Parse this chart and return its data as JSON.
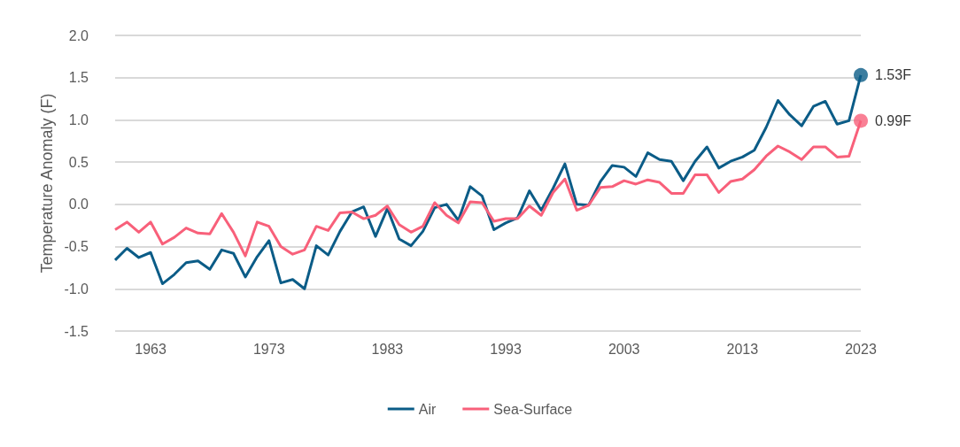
{
  "chart_data": {
    "type": "line",
    "ylabel": "Temperature Anomaly (F)",
    "x": [
      1960,
      1961,
      1962,
      1963,
      1964,
      1965,
      1966,
      1967,
      1968,
      1969,
      1970,
      1971,
      1972,
      1973,
      1974,
      1975,
      1976,
      1977,
      1978,
      1979,
      1980,
      1981,
      1982,
      1983,
      1984,
      1985,
      1986,
      1987,
      1988,
      1989,
      1990,
      1991,
      1992,
      1993,
      1994,
      1995,
      1996,
      1997,
      1998,
      1999,
      2000,
      2001,
      2002,
      2003,
      2004,
      2005,
      2006,
      2007,
      2008,
      2009,
      2010,
      2011,
      2012,
      2013,
      2014,
      2015,
      2016,
      2017,
      2018,
      2019,
      2020,
      2021,
      2022,
      2023
    ],
    "series": [
      {
        "name": "Air",
        "color": "#0b5c87",
        "values": [
          -0.66,
          -0.52,
          -0.63,
          -0.57,
          -0.94,
          -0.83,
          -0.69,
          -0.67,
          -0.77,
          -0.54,
          -0.58,
          -0.86,
          -0.62,
          -0.43,
          -0.93,
          -0.89,
          -1.0,
          -0.49,
          -0.6,
          -0.32,
          -0.09,
          -0.03,
          -0.38,
          -0.05,
          -0.41,
          -0.49,
          -0.32,
          -0.04,
          0.0,
          -0.19,
          0.21,
          0.1,
          -0.3,
          -0.22,
          -0.16,
          0.16,
          -0.07,
          0.19,
          0.48,
          0.0,
          -0.01,
          0.27,
          0.46,
          0.44,
          0.33,
          0.61,
          0.53,
          0.51,
          0.28,
          0.51,
          0.68,
          0.43,
          0.51,
          0.56,
          0.64,
          0.91,
          1.23,
          1.06,
          0.93,
          1.16,
          1.22,
          0.95,
          0.99,
          1.53
        ]
      },
      {
        "name": "Sea-Surface",
        "color": "#f8607a",
        "values": [
          -0.3,
          -0.21,
          -0.33,
          -0.21,
          -0.47,
          -0.39,
          -0.28,
          -0.34,
          -0.35,
          -0.11,
          -0.33,
          -0.61,
          -0.21,
          -0.26,
          -0.5,
          -0.59,
          -0.54,
          -0.26,
          -0.31,
          -0.1,
          -0.09,
          -0.17,
          -0.13,
          -0.02,
          -0.24,
          -0.33,
          -0.26,
          0.02,
          -0.13,
          -0.22,
          0.03,
          0.02,
          -0.2,
          -0.17,
          -0.17,
          -0.02,
          -0.13,
          0.14,
          0.3,
          -0.07,
          -0.01,
          0.2,
          0.21,
          0.28,
          0.24,
          0.29,
          0.26,
          0.13,
          0.13,
          0.35,
          0.35,
          0.14,
          0.27,
          0.3,
          0.41,
          0.57,
          0.69,
          0.62,
          0.53,
          0.68,
          0.68,
          0.56,
          0.57,
          0.99
        ]
      }
    ],
    "annotations": [
      {
        "text": "1.53F",
        "x": 2023,
        "y": 1.53
      },
      {
        "text": "0.99F",
        "x": 2023,
        "y": 0.99
      }
    ],
    "xlim": [
      1960,
      2023
    ],
    "xticks": [
      1963,
      1973,
      1983,
      1993,
      2003,
      2013,
      2023
    ],
    "ylim": [
      -1.5,
      2.0
    ],
    "yticks": [
      -1.5,
      {
        "value": -1,
        "label": "-1.0"
      },
      -0.5,
      {
        "value": 0,
        "label": "0.0"
      },
      0.5,
      {
        "value": 1,
        "label": "1.0"
      },
      1.5,
      {
        "value": 2,
        "label": "2.0"
      }
    ],
    "grid": "y",
    "legend": "bottom",
    "marker": "none",
    "line_style": "solid"
  }
}
